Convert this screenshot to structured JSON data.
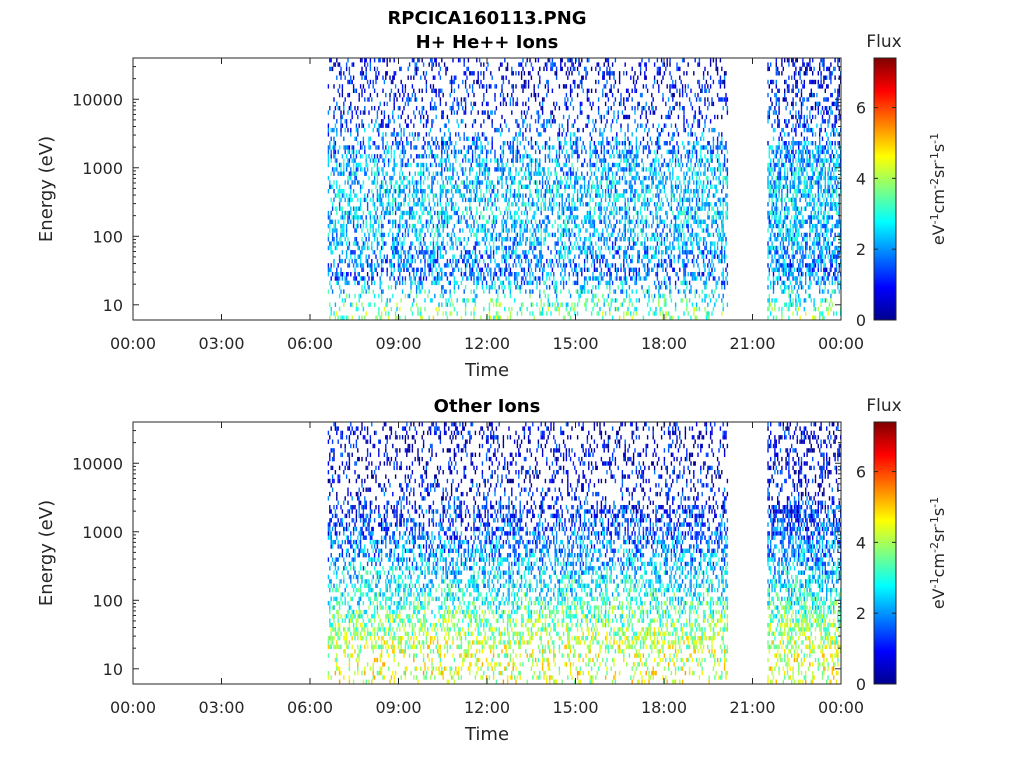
{
  "figure": {
    "title": "RPCICA160113.PNG"
  },
  "chart_data": [
    {
      "type": "heatmap",
      "title": "H+ He++ Ions",
      "xlabel": "Time",
      "ylabel": "Energy (eV)",
      "x_scale": "time",
      "y_scale": "log",
      "xlim": [
        "00:00",
        "24:00"
      ],
      "ylim": [
        6,
        40000
      ],
      "x_tick_labels": [
        "00:00",
        "03:00",
        "06:00",
        "09:00",
        "12:00",
        "15:00",
        "18:00",
        "21:00",
        "00:00"
      ],
      "x_tick_hours": [
        0,
        3,
        6,
        9,
        12,
        15,
        18,
        21,
        24
      ],
      "y_tick_values": [
        10,
        100,
        1000,
        10000
      ],
      "y_tick_labels": [
        "10",
        "100",
        "1000",
        "10000"
      ],
      "colorbar": {
        "title": "Flux",
        "label": "eV-1cm-2sr-1s-1",
        "range": [
          0,
          7.4
        ],
        "tick_values": [
          0,
          2,
          4,
          6
        ],
        "tick_labels": [
          "0",
          "2",
          "4",
          "6"
        ],
        "colormap": "jet"
      },
      "data_segments_hours": [
        [
          6.6,
          20.15
        ],
        [
          21.5,
          24.0
        ]
      ],
      "flux_profile": [
        {
          "energy_eV": 10,
          "typical_flux": 3.2
        },
        {
          "energy_eV": 30,
          "typical_flux": 1.6
        },
        {
          "energy_eV": 100,
          "typical_flux": 2.3
        },
        {
          "energy_eV": 300,
          "typical_flux": 2.4
        },
        {
          "energy_eV": 1000,
          "typical_flux": 2.3
        },
        {
          "energy_eV": 3000,
          "typical_flux": 1.6
        },
        {
          "energy_eV": 10000,
          "typical_flux": 1.0
        },
        {
          "energy_eV": 30000,
          "typical_flux": 0.8
        }
      ]
    },
    {
      "type": "heatmap",
      "title": "Other Ions",
      "xlabel": "Time",
      "ylabel": "Energy (eV)",
      "x_scale": "time",
      "y_scale": "log",
      "xlim": [
        "00:00",
        "24:00"
      ],
      "ylim": [
        6,
        40000
      ],
      "x_tick_labels": [
        "00:00",
        "03:00",
        "06:00",
        "09:00",
        "12:00",
        "15:00",
        "18:00",
        "21:00",
        "00:00"
      ],
      "x_tick_hours": [
        0,
        3,
        6,
        9,
        12,
        15,
        18,
        21,
        24
      ],
      "y_tick_values": [
        10,
        100,
        1000,
        10000
      ],
      "y_tick_labels": [
        "10",
        "100",
        "1000",
        "10000"
      ],
      "colorbar": {
        "title": "Flux",
        "label": "eV-1cm-2sr-1s-1",
        "range": [
          0,
          7.4
        ],
        "tick_values": [
          0,
          2,
          4,
          6
        ],
        "tick_labels": [
          "0",
          "2",
          "4",
          "6"
        ],
        "colormap": "jet"
      },
      "data_segments_hours": [
        [
          6.6,
          20.15
        ],
        [
          21.5,
          24.0
        ]
      ],
      "flux_profile": [
        {
          "energy_eV": 10,
          "typical_flux": 4.3
        },
        {
          "energy_eV": 30,
          "typical_flux": 4.0
        },
        {
          "energy_eV": 100,
          "typical_flux": 3.0
        },
        {
          "energy_eV": 300,
          "typical_flux": 2.3
        },
        {
          "energy_eV": 1000,
          "typical_flux": 1.6
        },
        {
          "energy_eV": 3000,
          "typical_flux": 1.0
        },
        {
          "energy_eV": 10000,
          "typical_flux": 0.7
        }
      ]
    }
  ]
}
